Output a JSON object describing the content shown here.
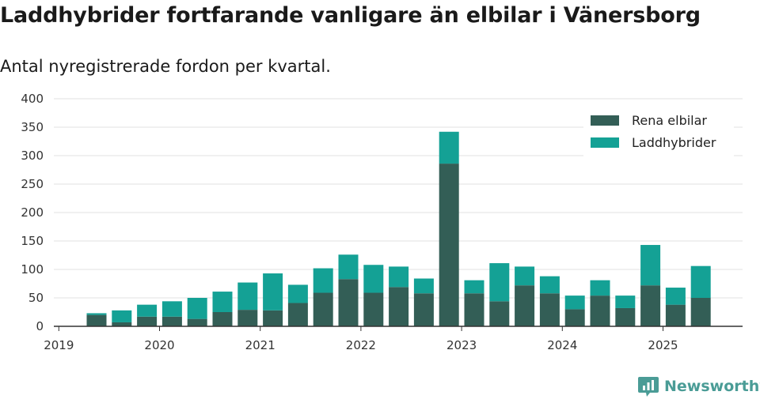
{
  "title": "Laddhybrider fortfarande vanligare än elbilar i Vänersborg",
  "subtitle": "Antal nyregistrerade fordon per kvartal.",
  "brand": {
    "name": "Newsworthy",
    "icon": "newsworthy-logo-icon"
  },
  "colors": {
    "rena_elbilar": "#335e56",
    "laddhybrider": "#14a195",
    "grid": "#e0e0e0",
    "axis": "#333333"
  },
  "chart_data": {
    "type": "bar",
    "stacked": true,
    "categories": [
      "2019 Q2",
      "2019 Q3",
      "2019 Q4",
      "2020 Q1",
      "2020 Q2",
      "2020 Q3",
      "2020 Q4",
      "2021 Q1",
      "2021 Q2",
      "2021 Q3",
      "2021 Q4",
      "2022 Q1",
      "2022 Q2",
      "2022 Q3",
      "2022 Q4",
      "2023 Q1",
      "2023 Q2",
      "2023 Q3",
      "2023 Q4",
      "2024 Q1",
      "2024 Q2",
      "2024 Q3",
      "2024 Q4",
      "2025 Q1",
      "2025 Q2"
    ],
    "series": [
      {
        "name": "Rena elbilar",
        "values": [
          20,
          7,
          17,
          17,
          13,
          25,
          29,
          28,
          41,
          59,
          83,
          59,
          69,
          58,
          286,
          58,
          44,
          72,
          58,
          30,
          54,
          32,
          72,
          38,
          50
        ]
      },
      {
        "name": "Laddhybrider",
        "values": [
          3,
          21,
          21,
          27,
          37,
          36,
          48,
          65,
          32,
          43,
          43,
          49,
          36,
          26,
          56,
          23,
          67,
          33,
          30,
          24,
          27,
          22,
          71,
          30,
          56
        ]
      }
    ],
    "x_tick_labels": [
      "2019",
      "2020",
      "2021",
      "2022",
      "2023",
      "2024",
      "2025"
    ],
    "y_ticks": [
      0,
      50,
      100,
      150,
      200,
      250,
      300,
      350,
      400
    ],
    "ylim": [
      0,
      400
    ],
    "grid": true,
    "legend_position": "top-right"
  }
}
